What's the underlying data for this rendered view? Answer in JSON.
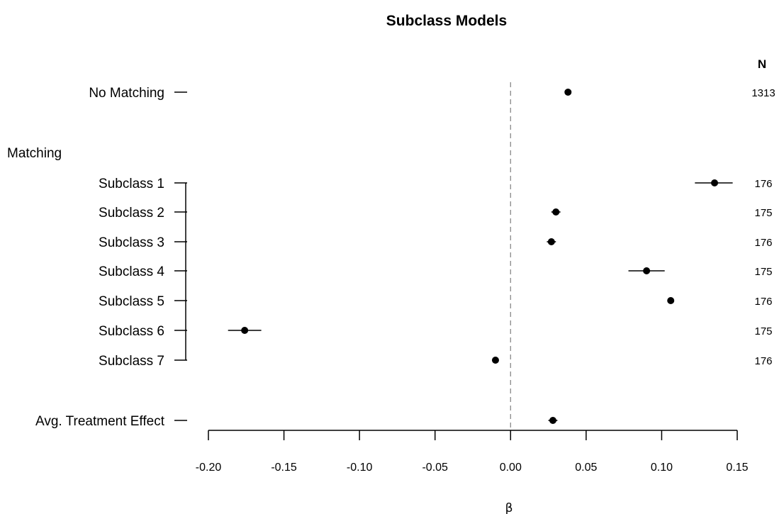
{
  "chart_data": {
    "type": "scatter",
    "title": "Subclass Models",
    "xlabel": "β",
    "ylabel": "",
    "xlim": [
      -0.2,
      0.15
    ],
    "x_ticks": [
      "-0.20",
      "-0.15",
      "-0.10",
      "-0.05",
      "0.00",
      "0.05",
      "0.10",
      "0.15"
    ],
    "n_header": "N",
    "group_label": "Matching",
    "reference_line": 0,
    "grid": false,
    "rows": [
      {
        "label": "No Matching",
        "estimate": 0.038,
        "ci": [
          0.038,
          0.038
        ],
        "n": "1313"
      },
      {
        "label": "Subclass 1",
        "estimate": 0.135,
        "ci": [
          0.122,
          0.147
        ],
        "n": "176"
      },
      {
        "label": "Subclass 2",
        "estimate": 0.03,
        "ci": [
          0.027,
          0.033
        ],
        "n": "175"
      },
      {
        "label": "Subclass 3",
        "estimate": 0.027,
        "ci": [
          0.024,
          0.03
        ],
        "n": "176"
      },
      {
        "label": "Subclass 4",
        "estimate": 0.09,
        "ci": [
          0.078,
          0.102
        ],
        "n": "175"
      },
      {
        "label": "Subclass 5",
        "estimate": 0.106,
        "ci": [
          0.106,
          0.106
        ],
        "n": "176"
      },
      {
        "label": "Subclass 6",
        "estimate": -0.176,
        "ci": [
          -0.187,
          -0.165
        ],
        "n": "175"
      },
      {
        "label": "Subclass 7",
        "estimate": -0.01,
        "ci": [
          -0.01,
          -0.01
        ],
        "n": "176"
      },
      {
        "label": "Avg. Treatment Effect",
        "estimate": 0.028,
        "ci": [
          0.025,
          0.031
        ],
        "n": ""
      }
    ]
  }
}
